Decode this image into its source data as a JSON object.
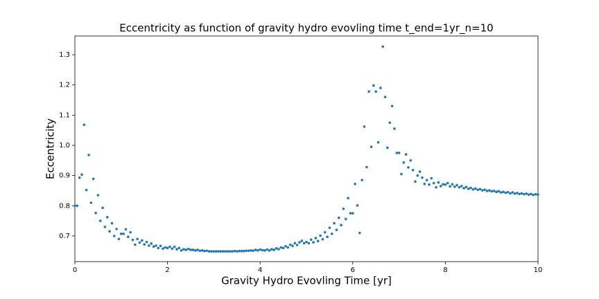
{
  "chart_data": {
    "type": "scatter",
    "title": "Eccentricity as function of gravity hydro evovling time t_end=1yr_n=10",
    "x_label": "Gravity Hydro Evovling Time [yr]",
    "y_label": "Eccentricity",
    "color": "#1f77b4",
    "xlim": [
      0,
      10
    ],
    "ylim": [
      0.615,
      1.362
    ],
    "xticks": [
      0,
      2,
      4,
      6,
      8,
      10
    ],
    "yticks": [
      0.7,
      0.8,
      0.9,
      {
        "value": 1,
        "label": "1.0"
      },
      1.1,
      1.2,
      1.3
    ],
    "x": [
      0,
      0.05,
      0.1,
      0.15,
      0.2,
      0.25,
      0.3,
      0.35,
      0.4,
      0.45,
      0.5,
      0.55,
      0.6,
      0.65,
      0.7,
      0.75,
      0.8,
      0.85,
      0.9,
      0.95,
      1,
      1.05,
      1.1,
      1.15,
      1.2,
      1.25,
      1.3,
      1.35,
      1.4,
      1.45,
      1.5,
      1.55,
      1.6,
      1.65,
      1.7,
      1.75,
      1.8,
      1.85,
      1.9,
      1.95,
      2,
      2.05,
      2.1,
      2.15,
      2.2,
      2.25,
      2.3,
      2.35,
      2.4,
      2.45,
      2.5,
      2.55,
      2.6,
      2.65,
      2.7,
      2.75,
      2.8,
      2.85,
      2.9,
      2.95,
      3,
      3.05,
      3.1,
      3.15,
      3.2,
      3.25,
      3.3,
      3.35,
      3.4,
      3.45,
      3.5,
      3.55,
      3.6,
      3.65,
      3.7,
      3.75,
      3.8,
      3.85,
      3.9,
      3.95,
      4,
      4.05,
      4.1,
      4.15,
      4.2,
      4.25,
      4.3,
      4.35,
      4.4,
      4.45,
      4.5,
      4.55,
      4.6,
      4.65,
      4.7,
      4.75,
      4.8,
      4.85,
      4.9,
      4.95,
      5,
      5.05,
      5.1,
      5.15,
      5.2,
      5.25,
      5.3,
      5.35,
      5.4,
      5.45,
      5.5,
      5.55,
      5.6,
      5.65,
      5.7,
      5.75,
      5.8,
      5.85,
      5.9,
      5.95,
      6,
      6.05,
      6.1,
      6.15,
      6.2,
      6.25,
      6.3,
      6.35,
      6.4,
      6.45,
      6.5,
      6.55,
      6.6,
      6.65,
      6.7,
      6.75,
      6.8,
      6.85,
      6.9,
      6.95,
      7,
      7.05,
      7.1,
      7.15,
      7.2,
      7.25,
      7.3,
      7.35,
      7.4,
      7.45,
      7.5,
      7.55,
      7.6,
      7.65,
      7.7,
      7.75,
      7.8,
      7.85,
      7.9,
      7.95,
      8,
      8.05,
      8.1,
      8.15,
      8.2,
      8.25,
      8.3,
      8.35,
      8.4,
      8.45,
      8.5,
      8.55,
      8.6,
      8.65,
      8.7,
      8.75,
      8.8,
      8.85,
      8.9,
      8.95,
      9,
      9.05,
      9.1,
      9.15,
      9.2,
      9.25,
      9.3,
      9.35,
      9.4,
      9.45,
      9.5,
      9.55,
      9.6,
      9.65,
      9.7,
      9.75,
      9.8,
      9.85,
      9.9,
      9.95,
      10
    ],
    "values": [
      0.8,
      0.8,
      0.893,
      0.903,
      1.068,
      0.852,
      0.968,
      0.81,
      0.889,
      0.776,
      0.835,
      0.75,
      0.793,
      0.73,
      0.762,
      0.715,
      0.742,
      0.7,
      0.723,
      0.69,
      0.707,
      0.707,
      0.722,
      0.697,
      0.712,
      0.687,
      0.671,
      0.69,
      0.678,
      0.685,
      0.672,
      0.68,
      0.668,
      0.675,
      0.665,
      0.668,
      0.66,
      0.667,
      0.658,
      0.662,
      0.66,
      0.664,
      0.658,
      0.664,
      0.656,
      0.66,
      0.652,
      0.656,
      0.654,
      0.657,
      0.654,
      0.654,
      0.652,
      0.654,
      0.651,
      0.652,
      0.65,
      0.651,
      0.649,
      0.649,
      0.649,
      0.649,
      0.649,
      0.649,
      0.649,
      0.649,
      0.649,
      0.649,
      0.649,
      0.65,
      0.649,
      0.65,
      0.65,
      0.65,
      0.651,
      0.651,
      0.652,
      0.651,
      0.654,
      0.652,
      0.655,
      0.653,
      0.652,
      0.655,
      0.652,
      0.656,
      0.654,
      0.659,
      0.656,
      0.662,
      0.66,
      0.666,
      0.662,
      0.671,
      0.667,
      0.676,
      0.67,
      0.679,
      0.684,
      0.676,
      0.68,
      0.676,
      0.688,
      0.679,
      0.693,
      0.683,
      0.701,
      0.689,
      0.712,
      0.697,
      0.727,
      0.707,
      0.742,
      0.72,
      0.76,
      0.736,
      0.79,
      0.756,
      0.825,
      0.775,
      0.775,
      0.872,
      0.801,
      0.71,
      0.885,
      1.062,
      0.928,
      1.178,
      0.995,
      1.198,
      1.178,
      1.01,
      1.19,
      1.327,
      1.16,
      0.992,
      1.075,
      1.13,
      1.055,
      0.975,
      0.975,
      0.905,
      0.943,
      0.97,
      0.927,
      0.95,
      0.918,
      0.88,
      0.9,
      0.913,
      0.893,
      0.872,
      0.885,
      0.87,
      0.891,
      0.875,
      0.861,
      0.877,
      0.865,
      0.871,
      0.87,
      0.875,
      0.864,
      0.871,
      0.863,
      0.868,
      0.861,
      0.865,
      0.858,
      0.862,
      0.856,
      0.859,
      0.854,
      0.857,
      0.853,
      0.855,
      0.851,
      0.853,
      0.849,
      0.851,
      0.848,
      0.849,
      0.846,
      0.848,
      0.844,
      0.846,
      0.843,
      0.845,
      0.841,
      0.844,
      0.84,
      0.842,
      0.839,
      0.841,
      0.838,
      0.84,
      0.837,
      0.839,
      0.836,
      0.838,
      0.837
    ]
  }
}
